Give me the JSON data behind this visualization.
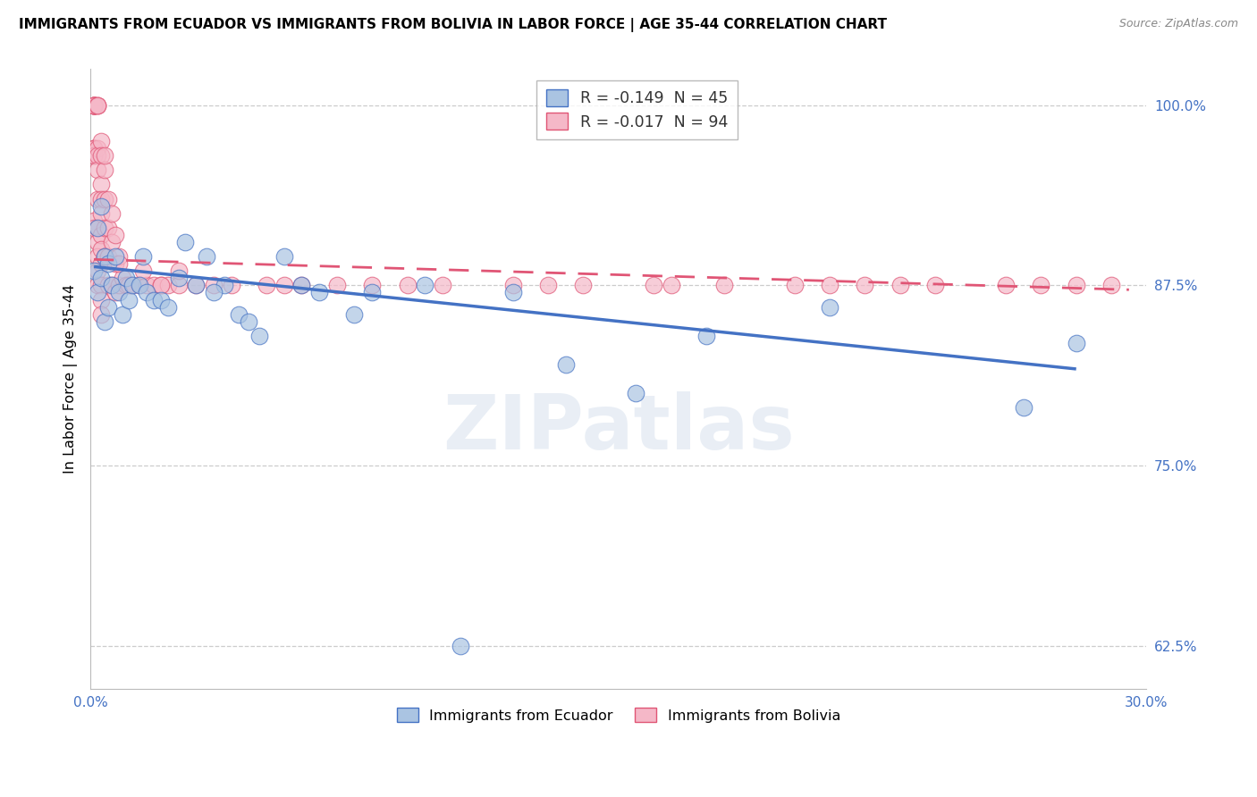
{
  "title": "IMMIGRANTS FROM ECUADOR VS IMMIGRANTS FROM BOLIVIA IN LABOR FORCE | AGE 35-44 CORRELATION CHART",
  "source": "Source: ZipAtlas.com",
  "ylabel": "In Labor Force | Age 35-44",
  "xlim": [
    0.0,
    0.3
  ],
  "ylim": [
    0.595,
    1.025
  ],
  "yticks": [
    0.625,
    0.75,
    0.875,
    1.0
  ],
  "ytick_labels": [
    "62.5%",
    "75.0%",
    "87.5%",
    "100.0%"
  ],
  "xticks": [
    0.0,
    0.05,
    0.1,
    0.15,
    0.2,
    0.25,
    0.3
  ],
  "xtick_labels": [
    "0.0%",
    "",
    "",
    "",
    "",
    "",
    "30.0%"
  ],
  "legend_label1": "R = -0.149  N = 45",
  "legend_label2": "R = -0.017  N = 94",
  "scatter_color1": "#aac4e2",
  "scatter_color2": "#f5b8c8",
  "line_color1": "#4472c4",
  "line_color2": "#e05575",
  "watermark": "ZIPatlas",
  "ecuador_x": [
    0.001,
    0.002,
    0.002,
    0.003,
    0.003,
    0.004,
    0.004,
    0.005,
    0.005,
    0.006,
    0.007,
    0.008,
    0.009,
    0.01,
    0.011,
    0.012,
    0.014,
    0.015,
    0.016,
    0.018,
    0.02,
    0.022,
    0.025,
    0.027,
    0.03,
    0.033,
    0.038,
    0.042,
    0.048,
    0.055,
    0.065,
    0.075,
    0.095,
    0.12,
    0.155,
    0.21,
    0.265,
    0.28,
    0.035,
    0.06,
    0.08,
    0.135,
    0.175,
    0.105,
    0.045
  ],
  "ecuador_y": [
    0.885,
    0.915,
    0.87,
    0.93,
    0.88,
    0.895,
    0.85,
    0.89,
    0.86,
    0.875,
    0.895,
    0.87,
    0.855,
    0.88,
    0.865,
    0.875,
    0.875,
    0.895,
    0.87,
    0.865,
    0.865,
    0.86,
    0.88,
    0.905,
    0.875,
    0.895,
    0.875,
    0.855,
    0.84,
    0.895,
    0.87,
    0.855,
    0.875,
    0.87,
    0.8,
    0.86,
    0.79,
    0.835,
    0.87,
    0.875,
    0.87,
    0.82,
    0.84,
    0.625,
    0.85
  ],
  "bolivia_x": [
    0.001,
    0.001,
    0.001,
    0.001,
    0.001,
    0.001,
    0.001,
    0.001,
    0.001,
    0.001,
    0.001,
    0.001,
    0.001,
    0.001,
    0.001,
    0.002,
    0.002,
    0.002,
    0.002,
    0.002,
    0.002,
    0.002,
    0.002,
    0.002,
    0.002,
    0.002,
    0.002,
    0.003,
    0.003,
    0.003,
    0.003,
    0.003,
    0.003,
    0.003,
    0.003,
    0.003,
    0.003,
    0.003,
    0.004,
    0.004,
    0.004,
    0.004,
    0.005,
    0.005,
    0.005,
    0.005,
    0.006,
    0.006,
    0.006,
    0.007,
    0.007,
    0.007,
    0.008,
    0.008,
    0.009,
    0.01,
    0.011,
    0.012,
    0.014,
    0.016,
    0.018,
    0.02,
    0.022,
    0.025,
    0.03,
    0.035,
    0.04,
    0.05,
    0.06,
    0.07,
    0.08,
    0.09,
    0.1,
    0.12,
    0.14,
    0.16,
    0.18,
    0.2,
    0.22,
    0.24,
    0.26,
    0.28,
    0.025,
    0.015,
    0.004,
    0.008,
    0.02,
    0.055,
    0.13,
    0.165,
    0.21,
    0.23,
    0.27,
    0.29
  ],
  "bolivia_y": [
    1.0,
    1.0,
    1.0,
    1.0,
    1.0,
    1.0,
    1.0,
    1.0,
    0.97,
    0.97,
    0.97,
    0.965,
    0.965,
    0.92,
    0.915,
    1.0,
    1.0,
    1.0,
    0.97,
    0.965,
    0.955,
    0.935,
    0.915,
    0.905,
    0.895,
    0.885,
    0.875,
    0.975,
    0.965,
    0.945,
    0.935,
    0.925,
    0.91,
    0.9,
    0.89,
    0.875,
    0.865,
    0.855,
    0.955,
    0.935,
    0.915,
    0.895,
    0.935,
    0.915,
    0.895,
    0.875,
    0.925,
    0.905,
    0.875,
    0.91,
    0.89,
    0.87,
    0.895,
    0.875,
    0.88,
    0.875,
    0.875,
    0.875,
    0.875,
    0.875,
    0.875,
    0.875,
    0.875,
    0.875,
    0.875,
    0.875,
    0.875,
    0.875,
    0.875,
    0.875,
    0.875,
    0.875,
    0.875,
    0.875,
    0.875,
    0.875,
    0.875,
    0.875,
    0.875,
    0.875,
    0.875,
    0.875,
    0.885,
    0.885,
    0.965,
    0.89,
    0.875,
    0.875,
    0.875,
    0.875,
    0.875,
    0.875,
    0.875,
    0.875
  ],
  "ecuador_line_x": [
    0.001,
    0.28
  ],
  "ecuador_line_y": [
    0.888,
    0.817
  ],
  "bolivia_line_x": [
    0.001,
    0.295
  ],
  "bolivia_line_y": [
    0.893,
    0.872
  ]
}
